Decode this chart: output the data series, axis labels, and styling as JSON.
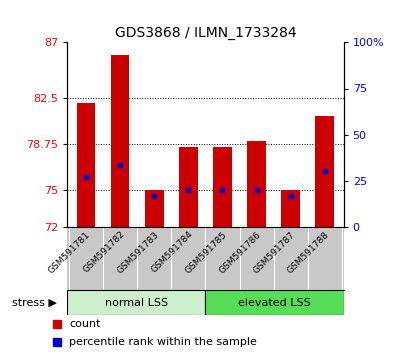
{
  "title": "GDS3868 / ILMN_1733284",
  "samples": [
    "GSM591781",
    "GSM591782",
    "GSM591783",
    "GSM591784",
    "GSM591785",
    "GSM591786",
    "GSM591787",
    "GSM591788"
  ],
  "red_values": [
    82.1,
    86.0,
    75.0,
    78.5,
    78.5,
    79.0,
    75.0,
    81.0
  ],
  "blue_values": [
    76.0,
    77.0,
    74.5,
    75.0,
    75.0,
    75.0,
    74.5,
    76.5
  ],
  "base": 72,
  "ylim_left": [
    72,
    87
  ],
  "ylim_right": [
    0,
    100
  ],
  "left_ticks": [
    72,
    75,
    78.75,
    82.5,
    87
  ],
  "right_ticks": [
    0,
    25,
    50,
    75,
    100
  ],
  "right_tick_labels": [
    "0",
    "25",
    "50",
    "75",
    "100%"
  ],
  "group1_label": "normal LSS",
  "group2_label": "elevated LSS",
  "group1_n": 4,
  "group2_n": 4,
  "group1_color": "#ccf0cc",
  "group2_color": "#55dd55",
  "stress_label": "stress",
  "legend_red": "count",
  "legend_blue": "percentile rank within the sample",
  "bar_width": 0.55,
  "bar_color": "#cc0000",
  "dot_color": "#0000cc",
  "grid_color": "#000000",
  "bg_color": "#ffffff",
  "tick_area_color": "#c8c8c8",
  "title_fontsize": 10,
  "tick_fontsize": 8,
  "label_fontsize": 8,
  "grid_lines": [
    75,
    78.75,
    82.5
  ]
}
